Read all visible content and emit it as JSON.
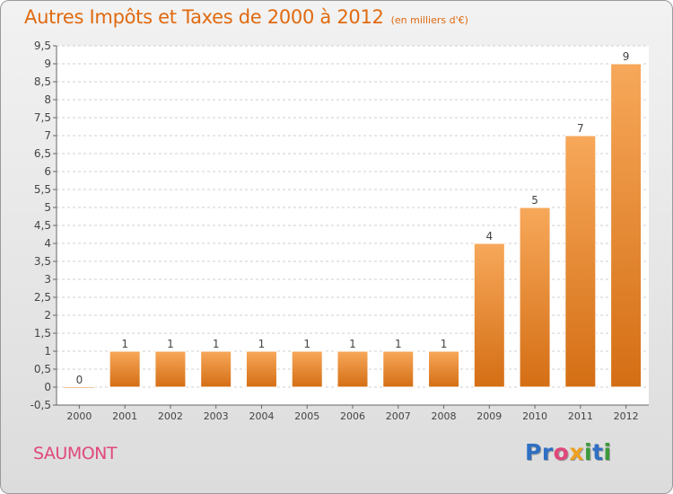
{
  "title": "Autres Impôts et Taxes de 2000 à 2012",
  "unit_note": "(en milliers d'€)",
  "commune": "SAUMONT",
  "logo": {
    "letters": [
      {
        "char": "P",
        "color": "#2f6fc4"
      },
      {
        "char": "r",
        "color": "#2f6fc4"
      },
      {
        "char": "o",
        "color": "#e0487a"
      },
      {
        "char": "x",
        "color": "#f0a020"
      },
      {
        "char": "i",
        "color": "#3c9a3c"
      },
      {
        "char": "t",
        "color": "#2f6fc4"
      },
      {
        "char": "i",
        "color": "#3c9a3c"
      }
    ]
  },
  "chart_data": {
    "type": "bar",
    "categories": [
      "2000",
      "2001",
      "2002",
      "2003",
      "2004",
      "2005",
      "2006",
      "2007",
      "2008",
      "2009",
      "2010",
      "2011",
      "2012"
    ],
    "values": [
      0,
      1,
      1,
      1,
      1,
      1,
      1,
      1,
      1,
      4,
      5,
      7,
      9
    ],
    "data_labels": [
      "0",
      "1",
      "1",
      "1",
      "1",
      "1",
      "1",
      "1",
      "1",
      "4",
      "5",
      "7",
      "9"
    ],
    "ylim": [
      -0.5,
      9.5
    ],
    "yticks": [
      "-0,5",
      "0",
      "0,5",
      "1",
      "1,5",
      "2",
      "2,5",
      "3",
      "3,5",
      "4",
      "4,5",
      "5",
      "5,5",
      "6",
      "6,5",
      "7",
      "7,5",
      "8",
      "8,5",
      "9",
      "9,5"
    ],
    "grid": true,
    "bar_color": "#f0922e",
    "bar_color_light": "#f7a85a",
    "bar_color_dark": "#d46e14"
  }
}
